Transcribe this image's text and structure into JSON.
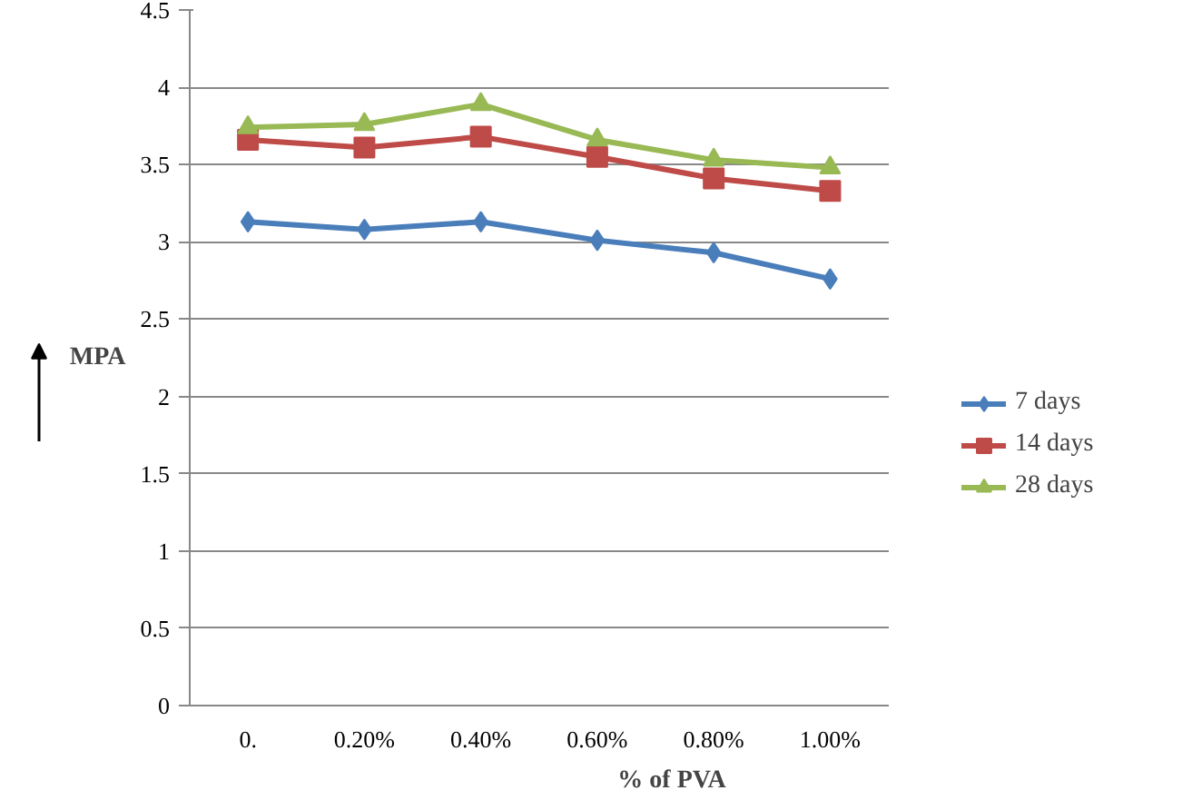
{
  "chart_data": {
    "type": "line",
    "xlabel": "% of PVA",
    "ylabel": "MPA",
    "categories": [
      "0.",
      "0.20%",
      "0.40%",
      "0.60%",
      "0.80%",
      "1.00%"
    ],
    "series": [
      {
        "name": "7 days",
        "color": "#4a7ebb",
        "marker": "diamond",
        "values": [
          3.13,
          3.08,
          3.13,
          3.01,
          2.93,
          2.76
        ]
      },
      {
        "name": "14 days",
        "color": "#be4b48",
        "marker": "square",
        "values": [
          3.66,
          3.61,
          3.68,
          3.55,
          3.41,
          3.33
        ]
      },
      {
        "name": "28 days",
        "color": "#98b954",
        "marker": "triangle",
        "values": [
          3.74,
          3.76,
          3.89,
          3.66,
          3.53,
          3.48
        ]
      }
    ],
    "ylim": [
      0,
      4.5
    ],
    "yticks": [
      0,
      0.5,
      1,
      1.5,
      2,
      2.5,
      3,
      3.5,
      4,
      4.5
    ],
    "grid": "y",
    "legend": "right"
  }
}
